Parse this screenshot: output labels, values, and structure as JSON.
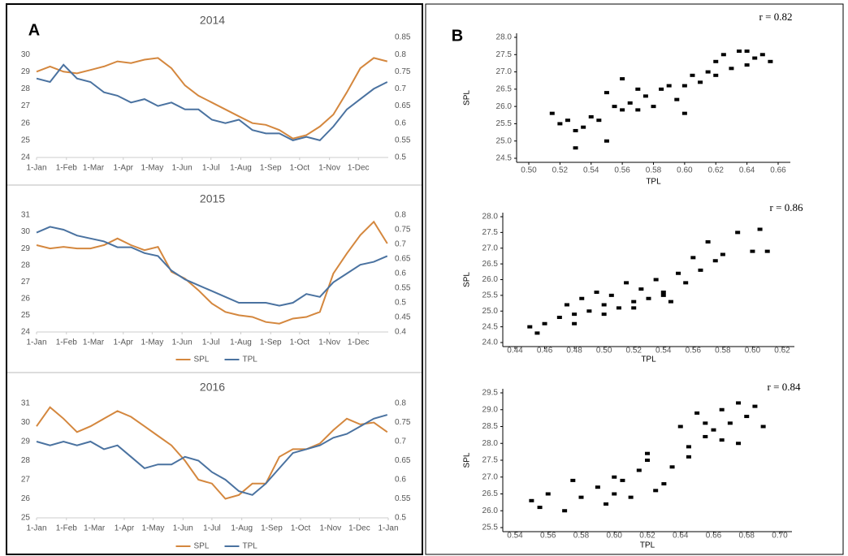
{
  "chart_data": [
    {
      "type": "line",
      "panel_label": "A",
      "title": "2014",
      "x": [
        0,
        14,
        28,
        42,
        56,
        70,
        84,
        98,
        112,
        126,
        140,
        154,
        168,
        182,
        196,
        210,
        224,
        238,
        252,
        266,
        280,
        294,
        308,
        322,
        336,
        350,
        364
      ],
      "xlim": [
        0,
        365
      ],
      "xticks": [
        {
          "value": 0,
          "label": "1-Jan"
        },
        {
          "value": 31,
          "label": "1-Feb"
        },
        {
          "value": 59,
          "label": "1-Mar"
        },
        {
          "value": 90,
          "label": "1-Apr"
        },
        {
          "value": 120,
          "label": "1-May"
        },
        {
          "value": 151,
          "label": "1-Jun"
        },
        {
          "value": 181,
          "label": "1-Jul"
        },
        {
          "value": 212,
          "label": "1-Aug"
        },
        {
          "value": 243,
          "label": "1-Sep"
        },
        {
          "value": 273,
          "label": "1-Oct"
        },
        {
          "value": 304,
          "label": "1-Nov"
        },
        {
          "value": 334,
          "label": "1-Dec"
        }
      ],
      "ylim": [
        24,
        31
      ],
      "yticks": [
        24,
        25,
        26,
        27,
        28,
        29,
        30
      ],
      "y2lim": [
        0.5,
        0.85
      ],
      "y2ticks": [
        0.5,
        0.55,
        0.6,
        0.65,
        0.7,
        0.75,
        0.8,
        0.85
      ],
      "series": [
        {
          "name": "SPL",
          "color": "#d4873e",
          "values": [
            29,
            29.3,
            29,
            28.9,
            29.1,
            29.3,
            29.6,
            29.5,
            29.7,
            29.8,
            29.2,
            28.2,
            27.6,
            27.2,
            26.8,
            26.4,
            26,
            25.9,
            25.6,
            25.1,
            25.3,
            25.8,
            26.5,
            27.8,
            29.2,
            29.8,
            29.6
          ]
        },
        {
          "name": "TPL",
          "color": "#4a72a0",
          "axis": "y2",
          "values": [
            0.73,
            0.72,
            0.77,
            0.73,
            0.72,
            0.69,
            0.68,
            0.66,
            0.67,
            0.65,
            0.66,
            0.64,
            0.64,
            0.61,
            0.6,
            0.61,
            0.58,
            0.57,
            0.57,
            0.55,
            0.56,
            0.55,
            0.59,
            0.64,
            0.67,
            0.7,
            0.72
          ]
        }
      ]
    },
    {
      "type": "line",
      "title": "2015",
      "legend": "bottom",
      "x": [
        0,
        14,
        28,
        42,
        56,
        70,
        84,
        98,
        112,
        126,
        140,
        154,
        168,
        182,
        196,
        210,
        224,
        238,
        252,
        266,
        280,
        294,
        308,
        322,
        336,
        350,
        364
      ],
      "xlim": [
        0,
        365
      ],
      "xticks": [
        {
          "value": 0,
          "label": "1-Jan"
        },
        {
          "value": 31,
          "label": "1-Feb"
        },
        {
          "value": 59,
          "label": "1-Mar"
        },
        {
          "value": 90,
          "label": "1-Apr"
        },
        {
          "value": 120,
          "label": "1-May"
        },
        {
          "value": 151,
          "label": "1-Jun"
        },
        {
          "value": 181,
          "label": "1-Jul"
        },
        {
          "value": 212,
          "label": "1-Aug"
        },
        {
          "value": 243,
          "label": "1-Sep"
        },
        {
          "value": 273,
          "label": "1-Oct"
        },
        {
          "value": 304,
          "label": "1-Nov"
        },
        {
          "value": 334,
          "label": "1-Dec"
        }
      ],
      "ylim": [
        24,
        31
      ],
      "yticks": [
        24,
        25,
        26,
        27,
        28,
        29,
        30,
        31
      ],
      "y2lim": [
        0.4,
        0.8
      ],
      "y2ticks": [
        0.4,
        0.45,
        0.5,
        0.55,
        0.6,
        0.65,
        0.7,
        0.75,
        0.8
      ],
      "series": [
        {
          "name": "SPL",
          "color": "#d4873e",
          "values": [
            29.2,
            29,
            29.1,
            29,
            29,
            29.2,
            29.6,
            29.2,
            28.9,
            29.1,
            27.6,
            27.2,
            26.5,
            25.7,
            25.2,
            25,
            24.9,
            24.6,
            24.5,
            24.8,
            24.9,
            25.2,
            27.5,
            28.7,
            29.8,
            30.6,
            29.3
          ]
        },
        {
          "name": "TPL",
          "color": "#4a72a0",
          "axis": "y2",
          "values": [
            0.74,
            0.76,
            0.75,
            0.73,
            0.72,
            0.71,
            0.69,
            0.69,
            0.67,
            0.66,
            0.61,
            0.58,
            0.56,
            0.54,
            0.52,
            0.5,
            0.5,
            0.5,
            0.49,
            0.5,
            0.53,
            0.52,
            0.57,
            0.6,
            0.63,
            0.64,
            0.66
          ]
        }
      ]
    },
    {
      "type": "line",
      "title": "2016",
      "legend": "bottom",
      "x": [
        0,
        14,
        28,
        42,
        56,
        70,
        84,
        98,
        112,
        126,
        140,
        154,
        168,
        182,
        196,
        210,
        224,
        238,
        252,
        266,
        280,
        294,
        308,
        322,
        336,
        350,
        364
      ],
      "xlim": [
        0,
        365
      ],
      "xticks": [
        {
          "value": 0,
          "label": "1-Jan"
        },
        {
          "value": 31,
          "label": "1-Feb"
        },
        {
          "value": 60,
          "label": "1-Mar"
        },
        {
          "value": 91,
          "label": "1-Apr"
        },
        {
          "value": 121,
          "label": "1-May"
        },
        {
          "value": 152,
          "label": "1-Jun"
        },
        {
          "value": 182,
          "label": "1-Jul"
        },
        {
          "value": 213,
          "label": "1-Aug"
        },
        {
          "value": 244,
          "label": "1-Sep"
        },
        {
          "value": 274,
          "label": "1-Oct"
        },
        {
          "value": 305,
          "label": "1-Nov"
        },
        {
          "value": 335,
          "label": "1-Dec"
        },
        {
          "value": 365,
          "label": "1-Jan"
        }
      ],
      "ylim": [
        25,
        31
      ],
      "yticks": [
        25,
        26,
        27,
        28,
        29,
        30,
        31
      ],
      "y2lim": [
        0.5,
        0.8
      ],
      "y2ticks": [
        0.5,
        0.55,
        0.6,
        0.65,
        0.7,
        0.75,
        0.8
      ],
      "series": [
        {
          "name": "SPL",
          "color": "#d4873e",
          "values": [
            29.8,
            30.8,
            30.2,
            29.5,
            29.8,
            30.2,
            30.6,
            30.3,
            29.8,
            29.3,
            28.8,
            28,
            27,
            26.8,
            26,
            26.2,
            26.8,
            26.8,
            28.2,
            28.6,
            28.6,
            28.9,
            29.6,
            30.2,
            29.9,
            30,
            29.5
          ]
        },
        {
          "name": "TPL",
          "color": "#4a72a0",
          "axis": "y2",
          "values": [
            0.7,
            0.69,
            0.7,
            0.69,
            0.7,
            0.68,
            0.69,
            0.66,
            0.63,
            0.64,
            0.64,
            0.66,
            0.65,
            0.62,
            0.6,
            0.57,
            0.56,
            0.59,
            0.63,
            0.67,
            0.68,
            0.69,
            0.71,
            0.72,
            0.74,
            0.76,
            0.77
          ]
        }
      ]
    },
    {
      "type": "scatter",
      "panel_label": "B",
      "annotation": "r = 0.82",
      "x_label": "TPL",
      "y_label": "SPL",
      "color": "#000000",
      "xlim": [
        0.5,
        0.66
      ],
      "xticks": [
        {
          "value": 0.5,
          "label": "0.50"
        },
        0.52,
        0.54,
        0.56,
        0.58,
        {
          "value": 0.6,
          "label": "0.60"
        },
        0.62,
        0.64,
        0.66
      ],
      "ylim": [
        24.5,
        28
      ],
      "yticks": [
        24.5,
        {
          "value": 25,
          "label": "25.0"
        },
        25.5,
        {
          "value": 26,
          "label": "26.0"
        },
        26.5,
        {
          "value": 27,
          "label": "27.0"
        },
        27.5,
        {
          "value": 28,
          "label": "28.0"
        }
      ],
      "x": [
        0.515,
        0.52,
        0.525,
        0.53,
        0.535,
        0.54,
        0.545,
        0.55,
        0.555,
        0.56,
        0.565,
        0.57,
        0.575,
        0.58,
        0.585,
        0.59,
        0.595,
        0.6,
        0.605,
        0.61,
        0.615,
        0.62,
        0.625,
        0.63,
        0.635,
        0.64,
        0.645,
        0.65,
        0.655,
        0.53,
        0.55,
        0.56,
        0.57,
        0.6,
        0.62,
        0.64
      ],
      "values": [
        25.8,
        25.5,
        25.6,
        24.8,
        25.4,
        25.7,
        25.6,
        26.4,
        26,
        26.8,
        26.1,
        25.9,
        26.3,
        26,
        26.5,
        26.6,
        26.2,
        25.8,
        26.9,
        26.7,
        27,
        27.3,
        27.5,
        27.1,
        27.6,
        27.2,
        27.4,
        27.5,
        27.3,
        25.3,
        25,
        25.9,
        26.5,
        26.6,
        26.9,
        27.6
      ]
    },
    {
      "type": "scatter",
      "annotation": "r = 0.86",
      "x_label": "TPL",
      "y_label": "SPL",
      "color": "#000000",
      "xlim": [
        0.44,
        0.62
      ],
      "xticks": [
        0.44,
        0.46,
        0.48,
        {
          "value": 0.5,
          "label": "0.50"
        },
        0.52,
        0.54,
        0.56,
        0.58,
        {
          "value": 0.6,
          "label": "0.60"
        },
        0.62
      ],
      "ylim": [
        24,
        28
      ],
      "yticks": [
        {
          "value": 24,
          "label": "24.0"
        },
        24.5,
        {
          "value": 25,
          "label": "25.0"
        },
        25.5,
        {
          "value": 26,
          "label": "26.0"
        },
        26.5,
        {
          "value": 27,
          "label": "27.0"
        },
        27.5,
        {
          "value": 28,
          "label": "28.0"
        }
      ],
      "x": [
        0.45,
        0.455,
        0.46,
        0.47,
        0.475,
        0.48,
        0.485,
        0.49,
        0.495,
        0.5,
        0.505,
        0.51,
        0.515,
        0.52,
        0.525,
        0.53,
        0.535,
        0.54,
        0.545,
        0.55,
        0.555,
        0.56,
        0.565,
        0.57,
        0.575,
        0.58,
        0.59,
        0.6,
        0.605,
        0.61,
        0.48,
        0.5,
        0.52,
        0.54
      ],
      "values": [
        24.5,
        24.3,
        24.6,
        24.8,
        25.2,
        24.9,
        25.4,
        25,
        25.6,
        25.2,
        25.5,
        25.1,
        25.9,
        25.3,
        25.7,
        25.4,
        26,
        25.6,
        25.3,
        26.2,
        25.9,
        26.7,
        26.3,
        27.2,
        26.6,
        26.8,
        27.5,
        26.9,
        27.6,
        26.9,
        24.6,
        24.9,
        25.1,
        25.5
      ]
    },
    {
      "type": "scatter",
      "annotation": "r = 0.84",
      "x_label": "TPL",
      "y_label": "SPL",
      "color": "#000000",
      "xlim": [
        0.54,
        0.7
      ],
      "xticks": [
        0.54,
        0.56,
        0.58,
        {
          "value": 0.6,
          "label": "0.60"
        },
        0.62,
        0.64,
        0.66,
        0.68,
        {
          "value": 0.7,
          "label": "0.70"
        }
      ],
      "ylim": [
        25.5,
        29.5
      ],
      "yticks": [
        25.5,
        {
          "value": 26,
          "label": "26.0"
        },
        26.5,
        {
          "value": 27,
          "label": "27.0"
        },
        27.5,
        {
          "value": 28,
          "label": "28.0"
        },
        28.5,
        {
          "value": 29,
          "label": "29.0"
        },
        29.5
      ],
      "x": [
        0.55,
        0.555,
        0.56,
        0.57,
        0.575,
        0.58,
        0.59,
        0.595,
        0.6,
        0.605,
        0.61,
        0.615,
        0.62,
        0.625,
        0.63,
        0.635,
        0.64,
        0.645,
        0.65,
        0.655,
        0.66,
        0.665,
        0.67,
        0.675,
        0.68,
        0.685,
        0.69,
        0.645,
        0.655,
        0.665,
        0.675,
        0.6,
        0.62
      ],
      "values": [
        26.3,
        26.1,
        26.5,
        26,
        26.9,
        26.4,
        26.7,
        26.2,
        26.5,
        26.9,
        26.4,
        27.2,
        27.5,
        26.6,
        26.8,
        27.3,
        28.5,
        27.6,
        28.9,
        28.2,
        28.4,
        29,
        28.6,
        28,
        28.8,
        29.1,
        28.5,
        27.9,
        28.6,
        28.1,
        29.2,
        27,
        27.7
      ]
    }
  ]
}
